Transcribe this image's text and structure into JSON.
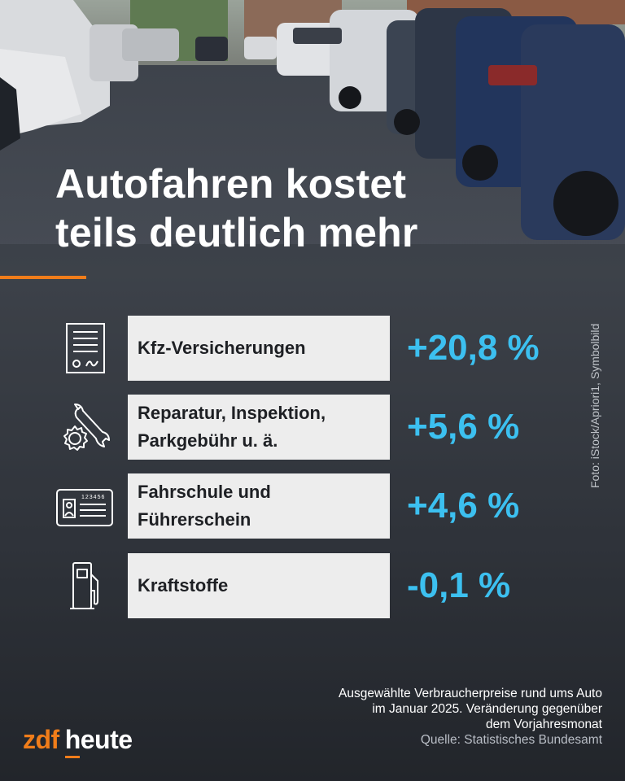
{
  "title_line1": "Autofahren kostet",
  "title_line2": "teils deutlich mehr",
  "photo_credit": "Foto: iStock/Apriori1, Symbolbild",
  "rows": [
    {
      "icon": "document-icon",
      "label_lines": [
        "Kfz-Versicherungen"
      ],
      "value": "+20,8 %"
    },
    {
      "icon": "wrench-gear-icon",
      "label_lines": [
        "Reparatur, Inspektion,",
        "Parkgebühr u. ä."
      ],
      "value": "+5,6 %"
    },
    {
      "icon": "license-card-icon",
      "card_number": "123456",
      "label_lines": [
        "Fahrschule und",
        "Führerschein"
      ],
      "value": "+4,6 %"
    },
    {
      "icon": "fuel-pump-icon",
      "label_lines": [
        "Kraftstoffe"
      ],
      "value": "-0,1 %"
    }
  ],
  "footnote_lines": [
    "Ausgewählte Verbraucherpreise rund ums Auto",
    "im Januar 2025. Veränderung gegenüber",
    "dem Vorjahresmonat"
  ],
  "source": "Quelle: Statistisches Bundesamt",
  "logo": {
    "part1": "zdf",
    "part2": "heute"
  },
  "colors": {
    "accent": "#f07d1a",
    "value": "#3cc0f0",
    "label_bg": "#ededed"
  }
}
